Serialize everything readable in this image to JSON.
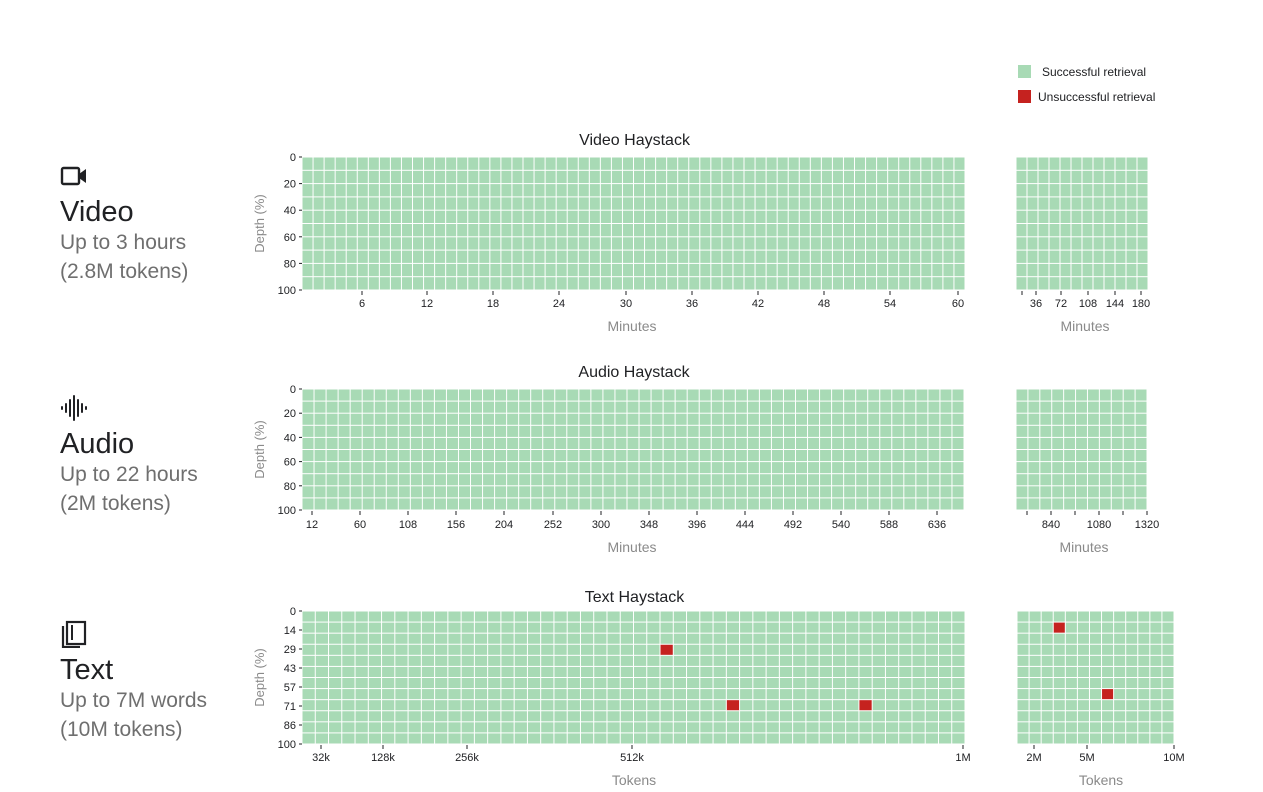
{
  "legend": {
    "success_label": "Successful retrieval",
    "fail_label": "Unsuccessful retrieval",
    "success_color": "#a8dab5",
    "fail_color": "#c5221f"
  },
  "sections": [
    {
      "icon": "video-camera-icon",
      "name": "Video",
      "line1": "Up to 3 hours",
      "line2": "(2.8M tokens)"
    },
    {
      "icon": "audio-waveform-icon",
      "name": "Audio",
      "line1": "Up to 22 hours",
      "line2": "(2M tokens)"
    },
    {
      "icon": "book-pages-icon",
      "name": "Text",
      "line1": "Up to 7M words",
      "line2": "(10M tokens)"
    }
  ],
  "chart_data": [
    {
      "type": "heatmap",
      "title": "Video Haystack",
      "ylabel": "Depth (%)",
      "xlabel": "Minutes",
      "yticks": [
        "0",
        "20",
        "40",
        "60",
        "80",
        "100"
      ],
      "xticks": [
        "6",
        "12",
        "18",
        "24",
        "30",
        "36",
        "42",
        "48",
        "54",
        "60"
      ],
      "xlim": [
        0,
        60
      ],
      "rows": 10,
      "cols": 60,
      "failures": []
    },
    {
      "type": "heatmap",
      "title": "",
      "xlabel": "Minutes",
      "xticks": [
        "36",
        "72",
        "108",
        "144",
        "180"
      ],
      "xlim": [
        0,
        180
      ],
      "rows": 10,
      "cols": 12,
      "failures": []
    },
    {
      "type": "heatmap",
      "title": "Audio Haystack",
      "ylabel": "Depth (%)",
      "xlabel": "Minutes",
      "yticks": [
        "0",
        "20",
        "40",
        "60",
        "80",
        "100"
      ],
      "xticks": [
        "12",
        "60",
        "108",
        "156",
        "204",
        "252",
        "300",
        "348",
        "396",
        "444",
        "492",
        "540",
        "588",
        "636"
      ],
      "xlim": [
        0,
        660
      ],
      "rows": 10,
      "cols": 55,
      "failures": []
    },
    {
      "type": "heatmap",
      "title": "",
      "xlabel": "Minutes",
      "xticks": [
        "840",
        "1080",
        "1320"
      ],
      "xlim": [
        660,
        1320
      ],
      "rows": 10,
      "cols": 11,
      "failures": []
    },
    {
      "type": "heatmap",
      "title": "Text Haystack",
      "ylabel": "Depth  (%)",
      "xlabel": "Tokens",
      "yticks": [
        "0",
        "14",
        "29",
        "43",
        "57",
        "71",
        "86",
        "100"
      ],
      "xticks": [
        "32k",
        "128k",
        "256k",
        "512k",
        "1M"
      ],
      "rows": 12,
      "cols": 50,
      "failures": [
        {
          "row": 3,
          "col": 27
        },
        {
          "row": 8,
          "col": 32
        },
        {
          "row": 8,
          "col": 42
        }
      ]
    },
    {
      "type": "heatmap",
      "title": "",
      "xlabel": "Tokens",
      "xticks": [
        "2M",
        "5M",
        "10M"
      ],
      "rows": 12,
      "cols": 13,
      "failures": [
        {
          "row": 1,
          "col": 3
        },
        {
          "row": 7,
          "col": 7
        }
      ]
    }
  ]
}
